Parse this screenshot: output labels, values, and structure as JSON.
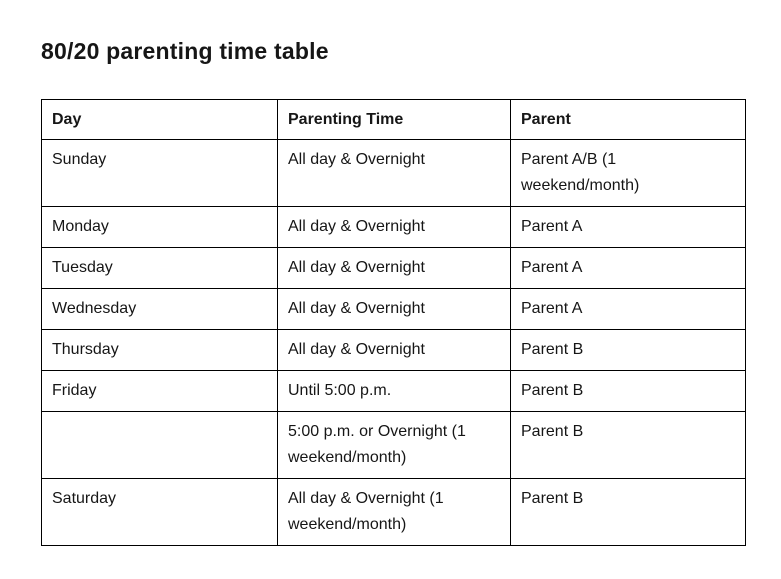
{
  "page": {
    "title": "80/20 parenting time table"
  },
  "colors": {
    "background": "#ffffff",
    "text": "#161616",
    "table_border": "#000000"
  },
  "table": {
    "headers": [
      "Day",
      "Parenting Time",
      "Parent"
    ],
    "rows": [
      {
        "day": "Sunday",
        "parenting_time": "All day & Overnight",
        "parent": "Parent A/B (1 weekend/month)"
      },
      {
        "day": "Monday",
        "parenting_time": "All day & Overnight",
        "parent": "Parent A"
      },
      {
        "day": "Tuesday",
        "parenting_time": "All day & Overnight",
        "parent": "Parent A"
      },
      {
        "day": "Wednesday",
        "parenting_time": "All day & Overnight",
        "parent": "Parent A"
      },
      {
        "day": "Thursday",
        "parenting_time": "All day & Overnight",
        "parent": "Parent B"
      },
      {
        "day": "Friday",
        "parenting_time": "Until 5:00 p.m.",
        "parent": "Parent B"
      },
      {
        "day": "",
        "parenting_time": "5:00 p.m. or Overnight (1 weekend/month)",
        "parent": "Parent B"
      },
      {
        "day": "Saturday",
        "parenting_time": "All day & Overnight (1 weekend/month)",
        "parent": "Parent B"
      }
    ]
  }
}
